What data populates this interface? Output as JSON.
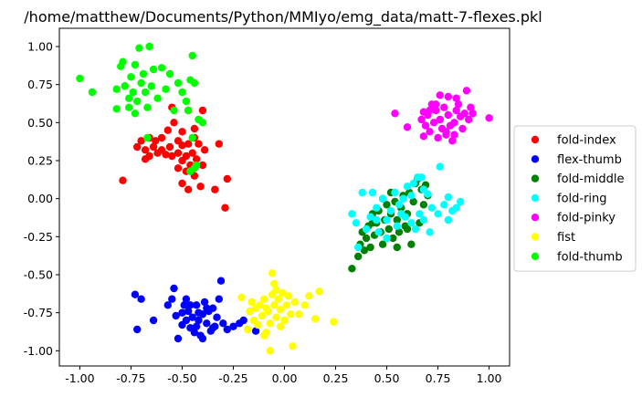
{
  "chart_data": {
    "type": "scatter",
    "title": "/home/matthew/Documents/Python/MMIyo/emg_data/matt-7-flexes.pkl",
    "xlabel": "",
    "ylabel": "",
    "xlim": [
      -1.1,
      1.1
    ],
    "ylim": [
      -1.1,
      1.12
    ],
    "xticks": [
      -1.0,
      -0.75,
      -0.5,
      -0.25,
      0.0,
      0.25,
      0.5,
      0.75,
      1.0
    ],
    "yticks": [
      -1.0,
      -0.75,
      -0.5,
      -0.25,
      0.0,
      0.25,
      0.5,
      0.75,
      1.0
    ],
    "legend_position": "right",
    "grid": false,
    "series": [
      {
        "name": "fold-index",
        "color": "#ff0000",
        "points": [
          [
            -0.55,
            0.6
          ],
          [
            -0.54,
            0.5
          ],
          [
            -0.47,
            0.58
          ],
          [
            -0.4,
            0.58
          ],
          [
            -0.44,
            0.46
          ],
          [
            -0.5,
            0.44
          ],
          [
            -0.57,
            0.45
          ],
          [
            -0.6,
            0.4
          ],
          [
            -0.63,
            0.38
          ],
          [
            -0.66,
            0.4
          ],
          [
            -0.7,
            0.38
          ],
          [
            -0.72,
            0.34
          ],
          [
            -0.68,
            0.32
          ],
          [
            -0.64,
            0.34
          ],
          [
            -0.6,
            0.32
          ],
          [
            -0.56,
            0.34
          ],
          [
            -0.52,
            0.38
          ],
          [
            -0.5,
            0.35
          ],
          [
            -0.47,
            0.36
          ],
          [
            -0.44,
            0.4
          ],
          [
            -0.42,
            0.36
          ],
          [
            -0.45,
            0.3
          ],
          [
            -0.48,
            0.28
          ],
          [
            -0.52,
            0.3
          ],
          [
            -0.55,
            0.28
          ],
          [
            -0.58,
            0.29
          ],
          [
            -0.62,
            0.3
          ],
          [
            -0.66,
            0.28
          ],
          [
            -0.68,
            0.26
          ],
          [
            -0.5,
            0.25
          ],
          [
            -0.46,
            0.22
          ],
          [
            -0.43,
            0.26
          ],
          [
            -0.4,
            0.22
          ],
          [
            -0.52,
            0.2
          ],
          [
            -0.48,
            0.18
          ],
          [
            -0.44,
            0.15
          ],
          [
            -0.5,
            0.1
          ],
          [
            -0.47,
            0.06
          ],
          [
            -0.41,
            0.08
          ],
          [
            -0.34,
            0.06
          ],
          [
            -0.28,
            0.13
          ],
          [
            -0.32,
            0.36
          ],
          [
            -0.29,
            -0.06
          ],
          [
            -0.79,
            0.12
          ],
          [
            -0.39,
            0.32
          ]
        ]
      },
      {
        "name": "flex-thumb",
        "color": "#0000ff",
        "points": [
          [
            -0.72,
            -0.86
          ],
          [
            -0.73,
            -0.63
          ],
          [
            -0.7,
            -0.66
          ],
          [
            -0.64,
            -0.8
          ],
          [
            -0.57,
            -0.7
          ],
          [
            -0.55,
            -0.66
          ],
          [
            -0.54,
            -0.59
          ],
          [
            -0.53,
            -0.77
          ],
          [
            -0.52,
            -0.92
          ],
          [
            -0.5,
            -0.83
          ],
          [
            -0.49,
            -0.7
          ],
          [
            -0.48,
            -0.66
          ],
          [
            -0.47,
            -0.74
          ],
          [
            -0.46,
            -0.85
          ],
          [
            -0.45,
            -0.78
          ],
          [
            -0.44,
            -0.88
          ],
          [
            -0.43,
            -0.7
          ],
          [
            -0.42,
            -0.8
          ],
          [
            -0.41,
            -0.9
          ],
          [
            -0.4,
            -0.76
          ],
          [
            -0.39,
            -0.68
          ],
          [
            -0.38,
            -0.82
          ],
          [
            -0.37,
            -0.74
          ],
          [
            -0.36,
            -0.87
          ],
          [
            -0.35,
            -0.72
          ],
          [
            -0.34,
            -0.84
          ],
          [
            -0.33,
            -0.78
          ],
          [
            -0.32,
            -0.66
          ],
          [
            -0.31,
            -0.54
          ],
          [
            -0.3,
            -0.82
          ],
          [
            -0.28,
            -0.86
          ],
          [
            -0.25,
            -0.84
          ],
          [
            -0.22,
            -0.82
          ],
          [
            -0.46,
            -0.7
          ],
          [
            -0.5,
            -0.75
          ],
          [
            -0.42,
            -0.75
          ],
          [
            -0.38,
            -0.72
          ],
          [
            -0.35,
            -0.85
          ],
          [
            -0.43,
            -0.84
          ],
          [
            -0.48,
            -0.8
          ],
          [
            -0.4,
            -0.92
          ],
          [
            -0.14,
            -0.87
          ],
          [
            -0.2,
            -0.8
          ]
        ]
      },
      {
        "name": "fold-middle",
        "color": "#008000",
        "points": [
          [
            0.33,
            -0.46
          ],
          [
            0.36,
            -0.38
          ],
          [
            0.37,
            -0.3
          ],
          [
            0.38,
            -0.22
          ],
          [
            0.4,
            -0.26
          ],
          [
            0.41,
            -0.18
          ],
          [
            0.42,
            -0.32
          ],
          [
            0.43,
            -0.1
          ],
          [
            0.44,
            -0.24
          ],
          [
            0.45,
            -0.16
          ],
          [
            0.46,
            -0.08
          ],
          [
            0.47,
            -0.22
          ],
          [
            0.48,
            -0.3
          ],
          [
            0.49,
            -0.14
          ],
          [
            0.5,
            -0.04
          ],
          [
            0.51,
            -0.2
          ],
          [
            0.52,
            -0.1
          ],
          [
            0.53,
            -0.26
          ],
          [
            0.54,
            -0.02
          ],
          [
            0.55,
            -0.14
          ],
          [
            0.56,
            -0.22
          ],
          [
            0.57,
            -0.06
          ],
          [
            0.58,
            0.02
          ],
          [
            0.59,
            -0.18
          ],
          [
            0.6,
            -0.1
          ],
          [
            0.61,
            0.04
          ],
          [
            0.62,
            -0.3
          ],
          [
            0.63,
            -0.02
          ],
          [
            0.64,
            0.1
          ],
          [
            0.65,
            0.13
          ],
          [
            0.66,
            -0.16
          ],
          [
            0.67,
            0.06
          ],
          [
            0.68,
            -0.04
          ],
          [
            0.69,
            0.09
          ],
          [
            0.7,
            0.02
          ],
          [
            0.55,
            -0.32
          ],
          [
            0.48,
            0.0
          ],
          [
            0.52,
            0.04
          ],
          [
            0.6,
            -0.2
          ],
          [
            0.43,
            -0.16
          ],
          [
            0.39,
            -0.34
          ]
        ]
      },
      {
        "name": "fold-ring",
        "color": "#00ffff",
        "points": [
          [
            0.33,
            -0.1
          ],
          [
            0.35,
            -0.16
          ],
          [
            0.36,
            -0.32
          ],
          [
            0.38,
            0.04
          ],
          [
            0.4,
            -0.2
          ],
          [
            0.42,
            -0.12
          ],
          [
            0.43,
            0.04
          ],
          [
            0.45,
            -0.06
          ],
          [
            0.46,
            -0.22
          ],
          [
            0.48,
            0.0
          ],
          [
            0.5,
            -0.14
          ],
          [
            0.52,
            -0.08
          ],
          [
            0.54,
            0.04
          ],
          [
            0.55,
            -0.18
          ],
          [
            0.56,
            -0.04
          ],
          [
            0.58,
            0.0
          ],
          [
            0.59,
            -0.12
          ],
          [
            0.6,
            0.08
          ],
          [
            0.62,
            -0.16
          ],
          [
            0.63,
            0.1
          ],
          [
            0.64,
            -0.2
          ],
          [
            0.65,
            0.14
          ],
          [
            0.66,
            -0.1
          ],
          [
            0.67,
            0.14
          ],
          [
            0.68,
            -0.14
          ],
          [
            0.7,
            0.03
          ],
          [
            0.71,
            -0.22
          ],
          [
            0.72,
            -0.06
          ],
          [
            0.75,
            -0.1
          ],
          [
            0.76,
            0.21
          ],
          [
            0.78,
            -0.04
          ],
          [
            0.8,
            0.01
          ],
          [
            0.8,
            -0.14
          ],
          [
            0.82,
            -0.08
          ],
          [
            0.84,
            -0.06
          ],
          [
            0.86,
            -0.02
          ],
          [
            0.68,
            0.06
          ],
          [
            0.57,
            -0.1
          ],
          [
            0.5,
            -0.26
          ],
          [
            0.45,
            -0.14
          ],
          [
            0.62,
            0.02
          ]
        ]
      },
      {
        "name": "fold-pinky",
        "color": "#ff00ff",
        "points": [
          [
            0.54,
            0.56
          ],
          [
            0.6,
            0.47
          ],
          [
            0.67,
            0.52
          ],
          [
            0.68,
            0.41
          ],
          [
            0.69,
            0.48
          ],
          [
            0.7,
            0.55
          ],
          [
            0.71,
            0.44
          ],
          [
            0.72,
            0.62
          ],
          [
            0.73,
            0.5
          ],
          [
            0.74,
            0.58
          ],
          [
            0.75,
            0.4
          ],
          [
            0.76,
            0.52
          ],
          [
            0.77,
            0.46
          ],
          [
            0.78,
            0.6
          ],
          [
            0.79,
            0.42
          ],
          [
            0.8,
            0.55
          ],
          [
            0.81,
            0.48
          ],
          [
            0.82,
            0.38
          ],
          [
            0.83,
            0.5
          ],
          [
            0.84,
            0.58
          ],
          [
            0.85,
            0.62
          ],
          [
            0.86,
            0.54
          ],
          [
            0.87,
            0.46
          ],
          [
            0.88,
            0.56
          ],
          [
            0.89,
            0.71
          ],
          [
            0.9,
            0.52
          ],
          [
            0.91,
            0.6
          ],
          [
            0.92,
            0.56
          ],
          [
            0.76,
            0.68
          ],
          [
            0.8,
            0.67
          ],
          [
            0.79,
            0.44
          ],
          [
            0.84,
            0.66
          ],
          [
            0.74,
            0.62
          ],
          [
            0.71,
            0.58
          ],
          [
            0.68,
            0.57
          ],
          [
            1.0,
            0.53
          ],
          [
            0.83,
            0.42
          ]
        ]
      },
      {
        "name": "fist",
        "color": "#ffff00",
        "points": [
          [
            -0.21,
            -0.65
          ],
          [
            -0.18,
            -0.86
          ],
          [
            -0.17,
            -0.74
          ],
          [
            -0.16,
            -0.68
          ],
          [
            -0.15,
            -0.8
          ],
          [
            -0.14,
            -0.72
          ],
          [
            -0.13,
            -0.83
          ],
          [
            -0.12,
            -0.7
          ],
          [
            -0.11,
            -0.77
          ],
          [
            -0.1,
            -0.66
          ],
          [
            -0.09,
            -0.88
          ],
          [
            -0.08,
            -0.74
          ],
          [
            -0.07,
            -0.82
          ],
          [
            -0.06,
            -0.63
          ],
          [
            -0.05,
            -0.7
          ],
          [
            -0.05,
            -0.56
          ],
          [
            -0.04,
            -0.78
          ],
          [
            -0.03,
            -0.66
          ],
          [
            -0.02,
            -0.73
          ],
          [
            -0.01,
            -0.62
          ],
          [
            0.0,
            -0.8
          ],
          [
            0.01,
            -0.7
          ],
          [
            0.02,
            -0.64
          ],
          [
            0.03,
            -0.76
          ],
          [
            0.05,
            -0.68
          ],
          [
            0.07,
            -0.76
          ],
          [
            0.1,
            -0.7
          ],
          [
            0.12,
            -0.64
          ],
          [
            0.15,
            -0.79
          ],
          [
            0.17,
            -0.61
          ],
          [
            0.24,
            -0.81
          ],
          [
            -0.07,
            -1.0
          ],
          [
            0.04,
            -0.97
          ],
          [
            -0.06,
            -0.49
          ],
          [
            -0.04,
            -0.6
          ],
          [
            -0.1,
            -0.9
          ],
          [
            -0.02,
            -0.84
          ],
          [
            -0.09,
            -0.72
          ]
        ]
      },
      {
        "name": "fold-thumb",
        "color": "#00ff00",
        "points": [
          [
            -1.0,
            0.79
          ],
          [
            -0.94,
            0.7
          ],
          [
            -0.82,
            0.72
          ],
          [
            -0.82,
            0.59
          ],
          [
            -0.8,
            0.87
          ],
          [
            -0.79,
            0.9
          ],
          [
            -0.78,
            0.74
          ],
          [
            -0.76,
            0.66
          ],
          [
            -0.75,
            0.8
          ],
          [
            -0.74,
            0.7
          ],
          [
            -0.73,
            0.88
          ],
          [
            -0.72,
            0.64
          ],
          [
            -0.71,
            0.99
          ],
          [
            -0.7,
            0.76
          ],
          [
            -0.69,
            0.82
          ],
          [
            -0.68,
            0.7
          ],
          [
            -0.67,
            0.6
          ],
          [
            -0.66,
            1.0
          ],
          [
            -0.65,
            0.74
          ],
          [
            -0.64,
            0.85
          ],
          [
            -0.62,
            0.66
          ],
          [
            -0.6,
            0.86
          ],
          [
            -0.58,
            0.72
          ],
          [
            -0.56,
            0.82
          ],
          [
            -0.54,
            0.58
          ],
          [
            -0.52,
            0.76
          ],
          [
            -0.5,
            0.7
          ],
          [
            -0.48,
            0.64
          ],
          [
            -0.46,
            0.78
          ],
          [
            -0.45,
            0.94
          ],
          [
            -0.44,
            0.76
          ],
          [
            -0.42,
            0.52
          ],
          [
            -0.4,
            0.5
          ],
          [
            -0.76,
            0.6
          ],
          [
            -0.73,
            0.56
          ],
          [
            -0.47,
            0.58
          ],
          [
            -0.67,
            0.4
          ],
          [
            -0.46,
            0.18
          ],
          [
            -0.45,
            0.4
          ],
          [
            -0.44,
            0.2
          ],
          [
            -0.43,
            0.22
          ],
          [
            -0.78,
            0.74
          ]
        ]
      }
    ]
  }
}
